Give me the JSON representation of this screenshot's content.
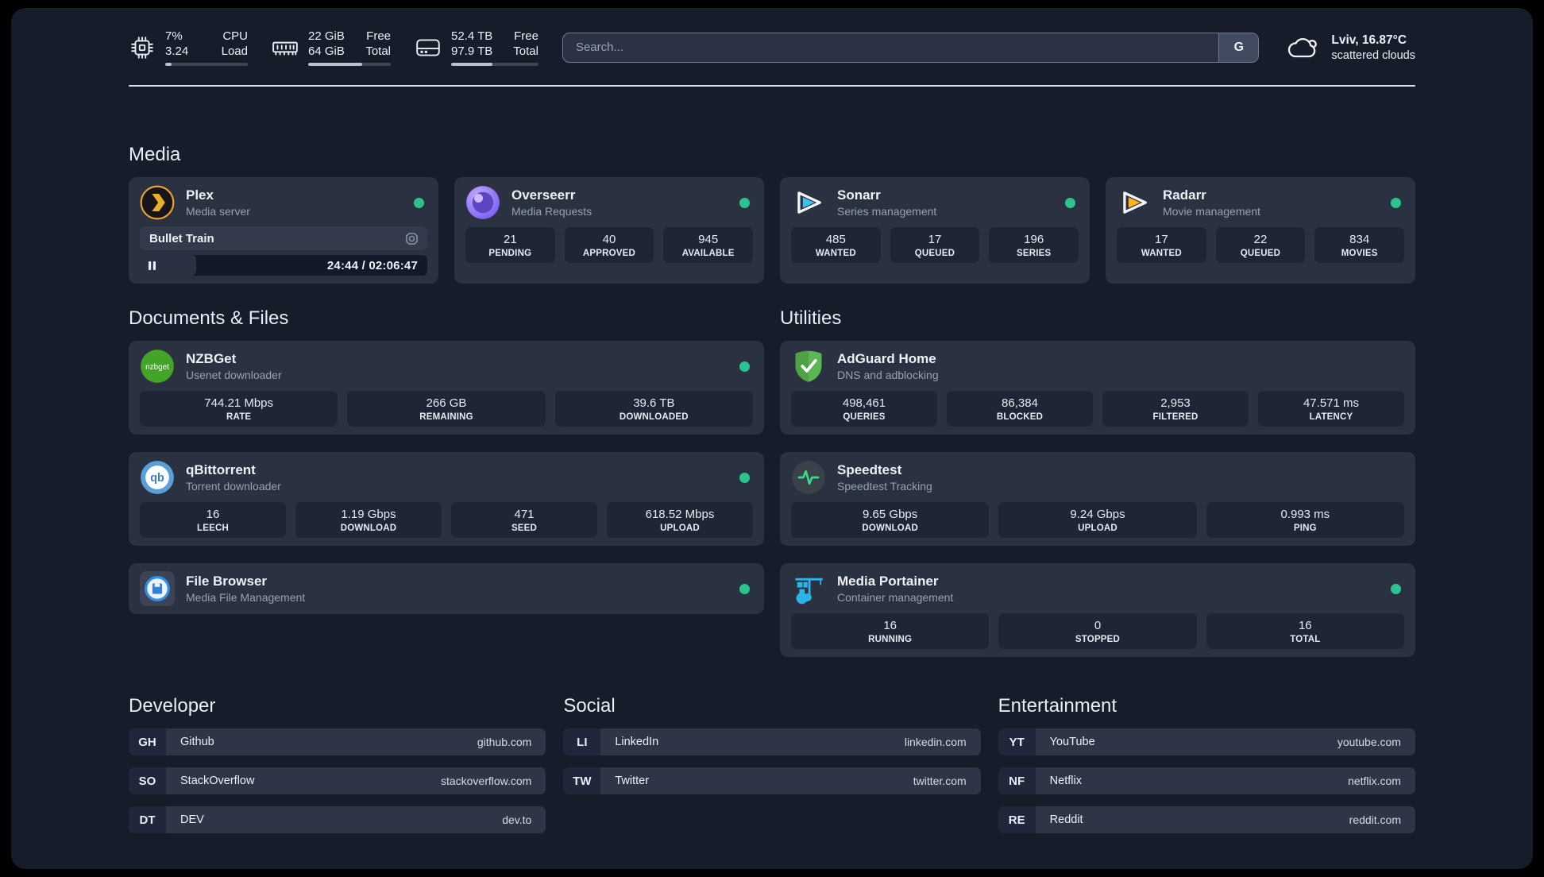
{
  "colors": {
    "status_online": "#2bc48e",
    "plex_accent": "#ebaf27",
    "sonarr_accent": "#36c3f2",
    "radarr_accent": "#fdb414"
  },
  "header": {
    "cpu": {
      "value": "7%",
      "value2": "3.24",
      "label": "CPU",
      "label2": "Load",
      "progress": 8
    },
    "ram": {
      "value": "22 GiB",
      "value2": "64 GiB",
      "label": "Free",
      "label2": "Total",
      "progress": 65
    },
    "disk": {
      "value": "52.4 TB",
      "value2": "97.9 TB",
      "label": "Free",
      "label2": "Total",
      "progress": 47
    },
    "search": {
      "placeholder": "Search...",
      "engine_button": "G"
    },
    "weather": {
      "location_temp": "Lviv, 16.87°C",
      "condition": "scattered clouds"
    }
  },
  "icons": {
    "nzbget_label": "nzbget",
    "qbittorrent_label": "qb"
  },
  "sections": {
    "media": {
      "title": "Media",
      "plex": {
        "name": "Plex",
        "subtitle": "Media server",
        "now_playing": "Bullet Train",
        "time": "24:44 / 02:06:47",
        "progress": 19.5
      },
      "overseerr": {
        "name": "Overseerr",
        "subtitle": "Media Requests",
        "stats": [
          {
            "value": "21",
            "label": "PENDING"
          },
          {
            "value": "40",
            "label": "APPROVED"
          },
          {
            "value": "945",
            "label": "AVAILABLE"
          }
        ]
      },
      "sonarr": {
        "name": "Sonarr",
        "subtitle": "Series management",
        "stats": [
          {
            "value": "485",
            "label": "WANTED"
          },
          {
            "value": "17",
            "label": "QUEUED"
          },
          {
            "value": "196",
            "label": "SERIES"
          }
        ]
      },
      "radarr": {
        "name": "Radarr",
        "subtitle": "Movie management",
        "stats": [
          {
            "value": "17",
            "label": "WANTED"
          },
          {
            "value": "22",
            "label": "QUEUED"
          },
          {
            "value": "834",
            "label": "MOVIES"
          }
        ]
      }
    },
    "documents": {
      "title": "Documents & Files",
      "nzbget": {
        "name": "NZBGet",
        "subtitle": "Usenet downloader",
        "stats": [
          {
            "value": "744.21 Mbps",
            "label": "RATE"
          },
          {
            "value": "266 GB",
            "label": "REMAINING"
          },
          {
            "value": "39.6 TB",
            "label": "DOWNLOADED"
          }
        ]
      },
      "qbittorrent": {
        "name": "qBittorrent",
        "subtitle": "Torrent downloader",
        "stats": [
          {
            "value": "16",
            "label": "LEECH"
          },
          {
            "value": "1.19 Gbps",
            "label": "DOWNLOAD"
          },
          {
            "value": "471",
            "label": "SEED"
          },
          {
            "value": "618.52 Mbps",
            "label": "UPLOAD"
          }
        ]
      },
      "filebrowser": {
        "name": "File Browser",
        "subtitle": "Media File Management"
      }
    },
    "utilities": {
      "title": "Utilities",
      "adguard": {
        "name": "AdGuard Home",
        "subtitle": "DNS and adblocking",
        "stats": [
          {
            "value": "498,461",
            "label": "QUERIES"
          },
          {
            "value": "86,384",
            "label": "BLOCKED"
          },
          {
            "value": "2,953",
            "label": "FILTERED"
          },
          {
            "value": "47.571 ms",
            "label": "LATENCY"
          }
        ]
      },
      "speedtest": {
        "name": "Speedtest",
        "subtitle": "Speedtest Tracking",
        "stats": [
          {
            "value": "9.65 Gbps",
            "label": "DOWNLOAD"
          },
          {
            "value": "9.24 Gbps",
            "label": "UPLOAD"
          },
          {
            "value": "0.993 ms",
            "label": "PING"
          }
        ]
      },
      "portainer": {
        "name": "Media Portainer",
        "subtitle": "Container management",
        "stats": [
          {
            "value": "16",
            "label": "RUNNING"
          },
          {
            "value": "0",
            "label": "STOPPED"
          },
          {
            "value": "16",
            "label": "TOTAL"
          }
        ]
      }
    },
    "developer": {
      "title": "Developer",
      "links": [
        {
          "abbr": "GH",
          "name": "Github",
          "url": "github.com"
        },
        {
          "abbr": "SO",
          "name": "StackOverflow",
          "url": "stackoverflow.com"
        },
        {
          "abbr": "DT",
          "name": "DEV",
          "url": "dev.to"
        }
      ]
    },
    "social": {
      "title": "Social",
      "links": [
        {
          "abbr": "LI",
          "name": "LinkedIn",
          "url": "linkedin.com"
        },
        {
          "abbr": "TW",
          "name": "Twitter",
          "url": "twitter.com"
        }
      ]
    },
    "entertainment": {
      "title": "Entertainment",
      "links": [
        {
          "abbr": "YT",
          "name": "YouTube",
          "url": "youtube.com"
        },
        {
          "abbr": "NF",
          "name": "Netflix",
          "url": "netflix.com"
        },
        {
          "abbr": "RE",
          "name": "Reddit",
          "url": "reddit.com"
        }
      ]
    }
  }
}
